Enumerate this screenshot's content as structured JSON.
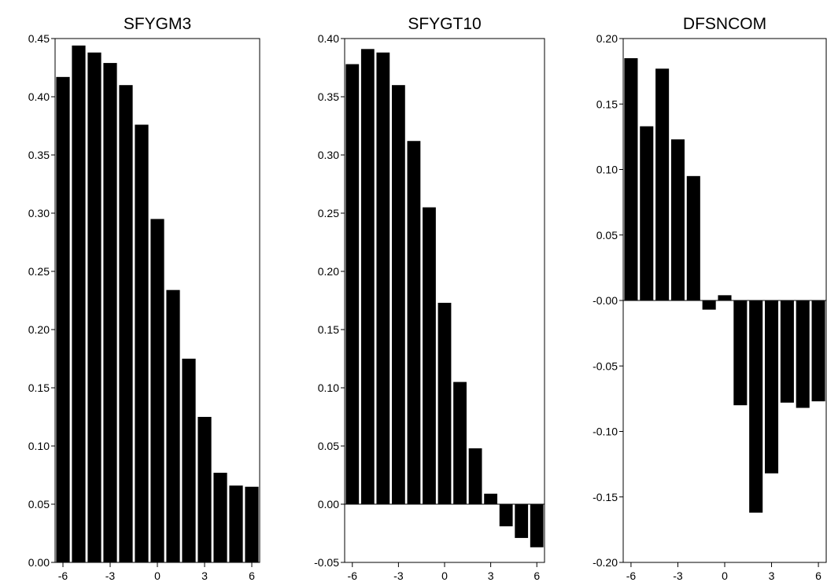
{
  "chart_data": [
    {
      "type": "bar",
      "title": "SFYGM3",
      "x": [
        -6,
        -5,
        -4,
        -3,
        -2,
        -1,
        0,
        1,
        2,
        3,
        4,
        5,
        6
      ],
      "values": [
        0.417,
        0.444,
        0.438,
        0.429,
        0.41,
        0.376,
        0.295,
        0.234,
        0.175,
        0.125,
        0.077,
        0.066,
        0.065
      ],
      "xticks": [
        -6,
        -3,
        0,
        3,
        6
      ],
      "xtick_labels": [
        "-6",
        "-3",
        "0",
        "3",
        "6"
      ],
      "yticks": [
        0.0,
        0.05,
        0.1,
        0.15,
        0.2,
        0.25,
        0.3,
        0.35,
        0.4,
        0.45
      ],
      "ytick_labels": [
        "0.00",
        "0.05",
        "0.10",
        "0.15",
        "0.20",
        "0.25",
        "0.30",
        "0.35",
        "0.40",
        "0.45"
      ],
      "ylim": [
        0,
        0.45
      ],
      "xlabel": "",
      "ylabel": "",
      "bar_color": "#000000"
    },
    {
      "type": "bar",
      "title": "SFYGT10",
      "x": [
        -6,
        -5,
        -4,
        -3,
        -2,
        -1,
        0,
        1,
        2,
        3,
        4,
        5,
        6
      ],
      "values": [
        0.378,
        0.391,
        0.388,
        0.36,
        0.312,
        0.255,
        0.173,
        0.105,
        0.048,
        0.009,
        -0.019,
        -0.029,
        -0.037
      ],
      "xticks": [
        -6,
        -3,
        0,
        3,
        6
      ],
      "xtick_labels": [
        "-6",
        "-3",
        "0",
        "3",
        "6"
      ],
      "yticks": [
        -0.05,
        0.0,
        0.05,
        0.1,
        0.15,
        0.2,
        0.25,
        0.3,
        0.35,
        0.4
      ],
      "ytick_labels": [
        "-0.05",
        "0.00",
        "0.05",
        "0.10",
        "0.15",
        "0.20",
        "0.25",
        "0.30",
        "0.35",
        "0.40"
      ],
      "ylim": [
        -0.05,
        0.4
      ],
      "xlabel": "",
      "ylabel": "",
      "bar_color": "#000000"
    },
    {
      "type": "bar",
      "title": "DFSNCOM",
      "x": [
        -6,
        -5,
        -4,
        -3,
        -2,
        -1,
        0,
        1,
        2,
        3,
        4,
        5,
        6
      ],
      "values": [
        0.185,
        0.133,
        0.177,
        0.123,
        0.095,
        -0.007,
        0.004,
        -0.08,
        -0.162,
        -0.132,
        -0.078,
        -0.082,
        -0.077
      ],
      "xticks": [
        -6,
        -3,
        0,
        3,
        6
      ],
      "xtick_labels": [
        "-6",
        "-3",
        "0",
        "3",
        "6"
      ],
      "yticks": [
        -0.2,
        -0.15,
        -0.1,
        -0.05,
        0.0,
        0.05,
        0.1,
        0.15,
        0.2
      ],
      "ytick_labels": [
        "-0.20",
        "-0.15",
        "-0.10",
        "-0.05",
        "-0.00",
        "0.05",
        "0.10",
        "0.15",
        "0.20"
      ],
      "ylim": [
        -0.2,
        0.2
      ],
      "xlabel": "",
      "ylabel": "",
      "bar_color": "#000000"
    }
  ]
}
